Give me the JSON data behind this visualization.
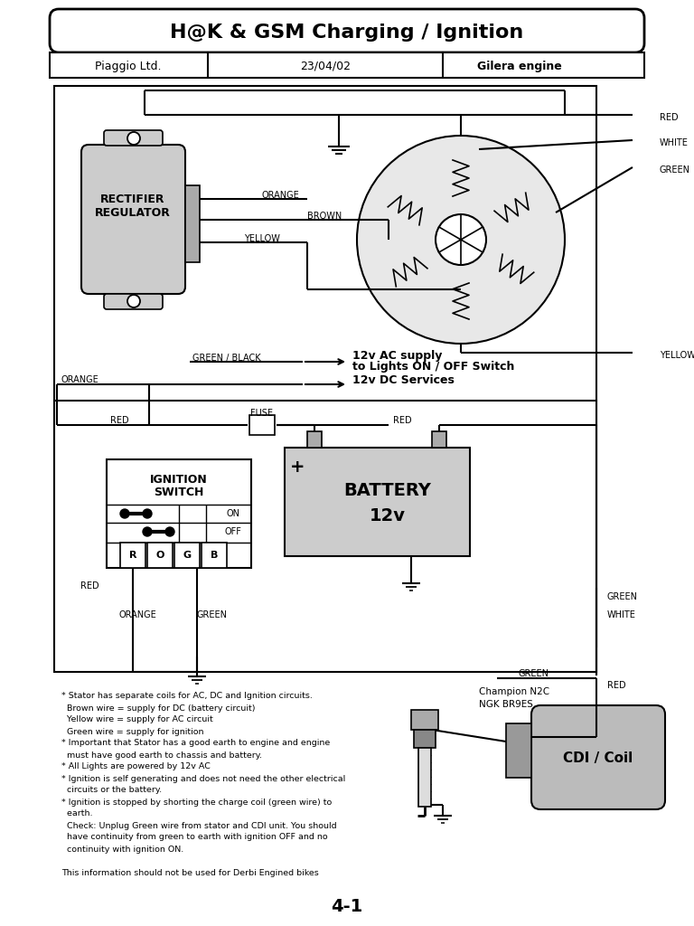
{
  "title": "H@K & GSM Charging / Ignition",
  "subtitle_left": "Piaggio Ltd.",
  "subtitle_mid": "23/04/02",
  "subtitle_right": "Gilera engine",
  "page_num": "4-1",
  "bg_color": "#ffffff",
  "notes": [
    "* Stator has separate coils for AC, DC and Ignition circuits.",
    "  Brown wire = supply for DC (battery circuit)",
    "  Yellow wire = supply for AC circuit",
    "  Green wire = supply for ignition",
    "* Important that Stator has a good earth to engine and engine",
    "  must have good earth to chassis and battery.",
    "* All Lights are powered by 12v AC",
    "* Ignition is self generating and does not need the other electrical",
    "  circuits or the battery.",
    "* Ignition is stopped by shorting the charge coil (green wire) to",
    "  earth.",
    "  Check: Unplug Green wire from stator and CDI unit. You should",
    "  have continuity from green to earth with ignition OFF and no",
    "  continuity with ignition ON.",
    "",
    "This information should not be used for Derbi Engined bikes"
  ]
}
